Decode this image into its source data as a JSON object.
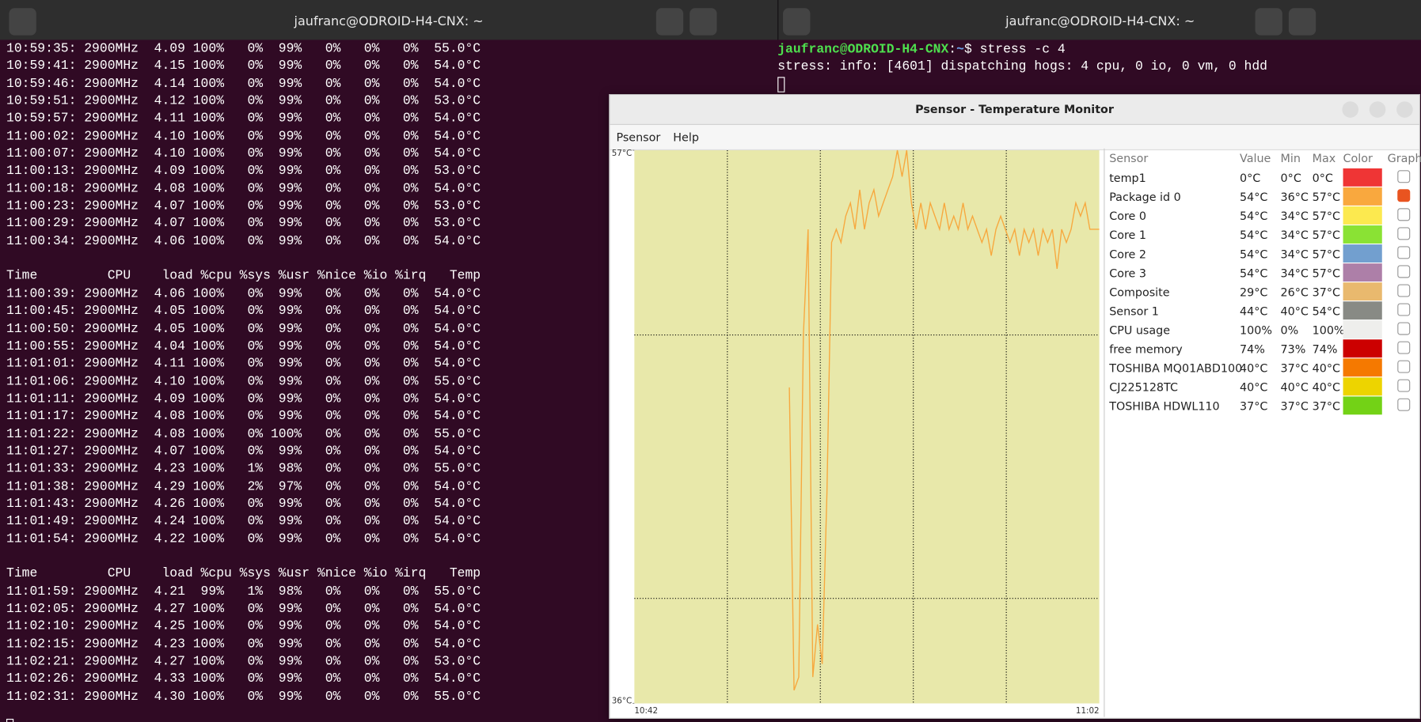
{
  "left_terminal": {
    "title": "jaufranc@ODROID-H4-CNX: ~",
    "blocks": [
      {
        "lines": [
          "10:59:35: 2900MHz  4.09 100%   0%  99%   0%   0%   0%  55.0°C",
          "10:59:41: 2900MHz  4.15 100%   0%  99%   0%   0%   0%  54.0°C",
          "10:59:46: 2900MHz  4.14 100%   0%  99%   0%   0%   0%  54.0°C",
          "10:59:51: 2900MHz  4.12 100%   0%  99%   0%   0%   0%  53.0°C",
          "10:59:57: 2900MHz  4.11 100%   0%  99%   0%   0%   0%  54.0°C",
          "11:00:02: 2900MHz  4.10 100%   0%  99%   0%   0%   0%  54.0°C",
          "11:00:07: 2900MHz  4.10 100%   0%  99%   0%   0%   0%  54.0°C",
          "11:00:13: 2900MHz  4.09 100%   0%  99%   0%   0%   0%  53.0°C",
          "11:00:18: 2900MHz  4.08 100%   0%  99%   0%   0%   0%  54.0°C",
          "11:00:23: 2900MHz  4.07 100%   0%  99%   0%   0%   0%  53.0°C",
          "11:00:29: 2900MHz  4.07 100%   0%  99%   0%   0%   0%  53.0°C",
          "11:00:34: 2900MHz  4.06 100%   0%  99%   0%   0%   0%  54.0°C"
        ]
      },
      {
        "lines": [
          "Time         CPU    load %cpu %sys %usr %nice %io %irq   Temp",
          "11:00:39: 2900MHz  4.06 100%   0%  99%   0%   0%   0%  54.0°C",
          "11:00:45: 2900MHz  4.05 100%   0%  99%   0%   0%   0%  54.0°C",
          "11:00:50: 2900MHz  4.05 100%   0%  99%   0%   0%   0%  54.0°C",
          "11:00:55: 2900MHz  4.04 100%   0%  99%   0%   0%   0%  54.0°C",
          "11:01:01: 2900MHz  4.11 100%   0%  99%   0%   0%   0%  54.0°C",
          "11:01:06: 2900MHz  4.10 100%   0%  99%   0%   0%   0%  55.0°C",
          "11:01:11: 2900MHz  4.09 100%   0%  99%   0%   0%   0%  54.0°C",
          "11:01:17: 2900MHz  4.08 100%   0%  99%   0%   0%   0%  54.0°C",
          "11:01:22: 2900MHz  4.08 100%   0% 100%   0%   0%   0%  55.0°C",
          "11:01:27: 2900MHz  4.07 100%   0%  99%   0%   0%   0%  54.0°C",
          "11:01:33: 2900MHz  4.23 100%   1%  98%   0%   0%   0%  55.0°C",
          "11:01:38: 2900MHz  4.29 100%   2%  97%   0%   0%   0%  54.0°C",
          "11:01:43: 2900MHz  4.26 100%   0%  99%   0%   0%   0%  54.0°C",
          "11:01:49: 2900MHz  4.24 100%   0%  99%   0%   0%   0%  54.0°C",
          "11:01:54: 2900MHz  4.22 100%   0%  99%   0%   0%   0%  54.0°C"
        ]
      },
      {
        "lines": [
          "Time         CPU    load %cpu %sys %usr %nice %io %irq   Temp",
          "11:01:59: 2900MHz  4.21  99%   1%  98%   0%   0%   0%  55.0°C",
          "11:02:05: 2900MHz  4.27 100%   0%  99%   0%   0%   0%  54.0°C",
          "11:02:10: 2900MHz  4.25 100%   0%  99%   0%   0%   0%  54.0°C",
          "11:02:15: 2900MHz  4.23 100%   0%  99%   0%   0%   0%  54.0°C",
          "11:02:21: 2900MHz  4.27 100%   0%  99%   0%   0%   0%  53.0°C",
          "11:02:26: 2900MHz  4.33 100%   0%  99%   0%   0%   0%  54.0°C",
          "11:02:31: 2900MHz  4.30 100%   0%  99%   0%   0%   0%  55.0°C"
        ]
      }
    ]
  },
  "right_terminal": {
    "title": "jaufranc@ODROID-H4-CNX: ~",
    "prompt_user": "jaufranc@ODROID-H4-CNX",
    "prompt_sep": ":",
    "prompt_dir": "~",
    "prompt_end": "$ ",
    "command": "stress -c 4",
    "output": "stress: info: [4601] dispatching hogs: 4 cpu, 0 io, 0 vm, 0 hdd"
  },
  "psensor": {
    "title": "Psensor - Temperature Monitor",
    "menu": [
      "Psensor",
      "Help"
    ],
    "chart_data": {
      "type": "line",
      "ylim": [
        36,
        57
      ],
      "yticks": [
        {
          "value": 57,
          "label": "57°C"
        },
        {
          "value": 36,
          "label": "36°C"
        }
      ],
      "x_start_label": "10:42",
      "x_end_label": "11:02",
      "bg_color": "#e8e8aa",
      "series": [
        {
          "name": "Package id 0",
          "color": "#f7a83e",
          "values": [
            null,
            null,
            null,
            null,
            null,
            null,
            null,
            null,
            null,
            null,
            null,
            null,
            null,
            null,
            null,
            null,
            null,
            null,
            null,
            null,
            null,
            null,
            null,
            null,
            null,
            null,
            null,
            null,
            null,
            null,
            null,
            null,
            null,
            48,
            36.5,
            37,
            50,
            54,
            37,
            39,
            37.5,
            44,
            53.5,
            54,
            53.5,
            54.5,
            55,
            54,
            55.5,
            54,
            55,
            55.5,
            54.5,
            55,
            55.5,
            56,
            57,
            56,
            57,
            55,
            54,
            55,
            54,
            55,
            54.5,
            54,
            55,
            54,
            54.5,
            54,
            55,
            54,
            54.5,
            54,
            53.5,
            54,
            53,
            54,
            54.5,
            54,
            53.5,
            54,
            53,
            54,
            53.5,
            54,
            53,
            54,
            53.5,
            54,
            52.5,
            54,
            53.5,
            54,
            55,
            54.5,
            55,
            54,
            54,
            54
          ]
        }
      ]
    },
    "table": {
      "headers": [
        "Sensor",
        "Value",
        "Min",
        "Max",
        "Color",
        "Graph"
      ],
      "rows": [
        {
          "sensor": "temp1",
          "value": "0°C",
          "min": "0°C",
          "max": "0°C",
          "color": "#ef3535",
          "graph": false
        },
        {
          "sensor": "Package id 0",
          "value": "54°C",
          "min": "36°C",
          "max": "57°C",
          "color": "#f9a83e",
          "graph": true
        },
        {
          "sensor": "Core 0",
          "value": "54°C",
          "min": "34°C",
          "max": "57°C",
          "color": "#fce94f",
          "graph": false
        },
        {
          "sensor": "Core 1",
          "value": "54°C",
          "min": "34°C",
          "max": "57°C",
          "color": "#8ae234",
          "graph": false
        },
        {
          "sensor": "Core 2",
          "value": "54°C",
          "min": "34°C",
          "max": "57°C",
          "color": "#729fcf",
          "graph": false
        },
        {
          "sensor": "Core 3",
          "value": "54°C",
          "min": "34°C",
          "max": "57°C",
          "color": "#ad7fa8",
          "graph": false
        },
        {
          "sensor": "Composite",
          "value": "29°C",
          "min": "26°C",
          "max": "37°C",
          "color": "#e9b96e",
          "graph": false
        },
        {
          "sensor": "Sensor 1",
          "value": "44°C",
          "min": "40°C",
          "max": "54°C",
          "color": "#888a85",
          "graph": false
        },
        {
          "sensor": "CPU usage",
          "value": "100%",
          "min": "0%",
          "max": "100%",
          "color": "#eeeeec",
          "graph": false
        },
        {
          "sensor": "free memory",
          "value": "74%",
          "min": "73%",
          "max": "74%",
          "color": "#cc0000",
          "graph": false
        },
        {
          "sensor": "TOSHIBA MQ01ABD100",
          "value": "40°C",
          "min": "37°C",
          "max": "40°C",
          "color": "#f57900",
          "graph": false
        },
        {
          "sensor": "CJ225128TC",
          "value": "40°C",
          "min": "40°C",
          "max": "40°C",
          "color": "#edd400",
          "graph": false
        },
        {
          "sensor": "TOSHIBA HDWL110",
          "value": "37°C",
          "min": "37°C",
          "max": "37°C",
          "color": "#73d216",
          "graph": false
        }
      ]
    }
  }
}
